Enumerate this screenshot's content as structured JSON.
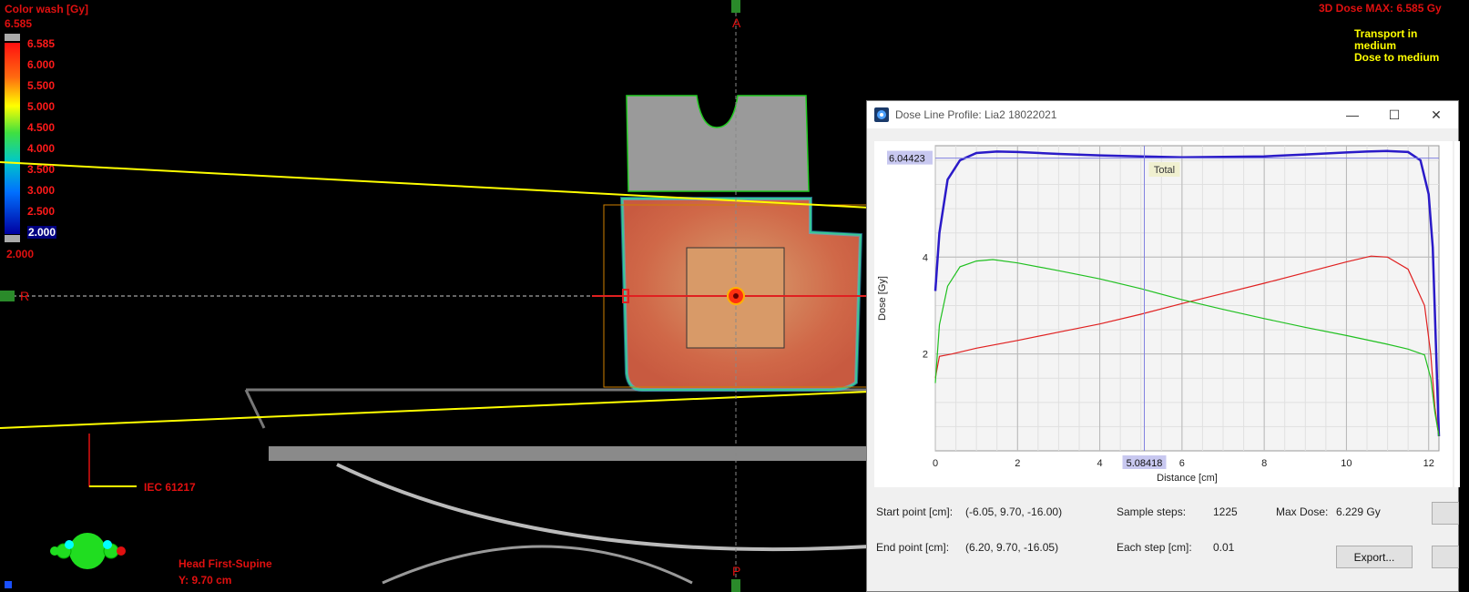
{
  "viewer": {
    "colorwash_title": "Color wash [Gy]",
    "colorwash_top": "6.585",
    "scale_ticks": [
      "6.585",
      "6.000",
      "5.500",
      "5.000",
      "4.500",
      "4.000",
      "3.500",
      "3.000",
      "2.500",
      "2.000"
    ],
    "colorwash_bottom": "2.000",
    "dose_max": "3D Dose MAX: 6.585 Gy",
    "transport_line1": "Transport in",
    "transport_line2": "medium",
    "dose_to_medium": "Dose to medium",
    "orient_top": "A",
    "orient_left": "R",
    "orient_bottom": "P",
    "iec_label": "IEC 61217",
    "patient_position": "Head First-Supine",
    "slice_position": "Y: 9.70 cm",
    "colors": {
      "overlay_text": "#e01010",
      "info_text": "#ffff00",
      "beam_line": "#ffff00",
      "structure": "#00cc00"
    }
  },
  "dialog": {
    "title": "Dose Line Profile: Lia2 18022021",
    "window_buttons": {
      "minimize": "—",
      "maximize": "☐",
      "close": "✕"
    },
    "cursor_y_value": "6.04423",
    "cursor_x_value": "5.08418",
    "total_label": "Total",
    "start_label": "Start point [cm]:",
    "start_value": "(-6.05, 9.70, -16.00)",
    "end_label": "End point [cm]:",
    "end_value": "(6.20, 9.70, -16.05)",
    "sample_label": "Sample steps:",
    "sample_value": "1225",
    "step_label": "Each step [cm]:",
    "step_value": "0.01",
    "maxdose_label": "Max Dose:",
    "maxdose_value": "6.229 Gy",
    "export_label": "Export..."
  },
  "chart_data": {
    "type": "line",
    "title": "",
    "xlabel": "Distance [cm]",
    "ylabel": "Dose [Gy]",
    "xlim": [
      0,
      12.25
    ],
    "ylim": [
      0,
      6.3
    ],
    "xticks": [
      "0",
      "2",
      "4",
      "6",
      "8",
      "10",
      "12"
    ],
    "yticks": [
      "2",
      "4"
    ],
    "grid": true,
    "series": [
      {
        "color": "#2a1ac8",
        "x": [
          0,
          0.1,
          0.3,
          0.6,
          1.0,
          1.5,
          2,
          3,
          4,
          5,
          6,
          7,
          8,
          9,
          10,
          10.5,
          11,
          11.5,
          11.8,
          12.0,
          12.1,
          12.2,
          12.25
        ],
        "values": [
          3.3,
          4.5,
          5.6,
          6.0,
          6.15,
          6.18,
          6.17,
          6.13,
          6.1,
          6.08,
          6.06,
          6.07,
          6.08,
          6.12,
          6.16,
          6.18,
          6.19,
          6.17,
          6.0,
          5.3,
          4.2,
          1.6,
          0.3
        ]
      },
      {
        "color": "#e02020",
        "x": [
          0,
          0.1,
          0.4,
          1,
          2,
          3,
          4,
          5,
          6,
          7,
          8,
          9,
          10,
          10.6,
          11,
          11.5,
          11.9,
          12.05,
          12.15,
          12.25
        ],
        "values": [
          1.5,
          1.95,
          2.0,
          2.12,
          2.28,
          2.45,
          2.62,
          2.82,
          3.04,
          3.25,
          3.46,
          3.68,
          3.9,
          4.02,
          4.0,
          3.75,
          3.0,
          2.0,
          0.9,
          0.3
        ]
      },
      {
        "color": "#20c020",
        "x": [
          0,
          0.1,
          0.3,
          0.6,
          1.0,
          1.4,
          2,
          3,
          4,
          5,
          6,
          7,
          8,
          9,
          10,
          11,
          11.5,
          11.9,
          12.05,
          12.15,
          12.25
        ],
        "values": [
          1.4,
          2.6,
          3.4,
          3.8,
          3.92,
          3.95,
          3.88,
          3.72,
          3.55,
          3.35,
          3.12,
          2.92,
          2.73,
          2.55,
          2.38,
          2.2,
          2.1,
          1.98,
          1.5,
          0.8,
          0.3
        ]
      }
    ]
  }
}
